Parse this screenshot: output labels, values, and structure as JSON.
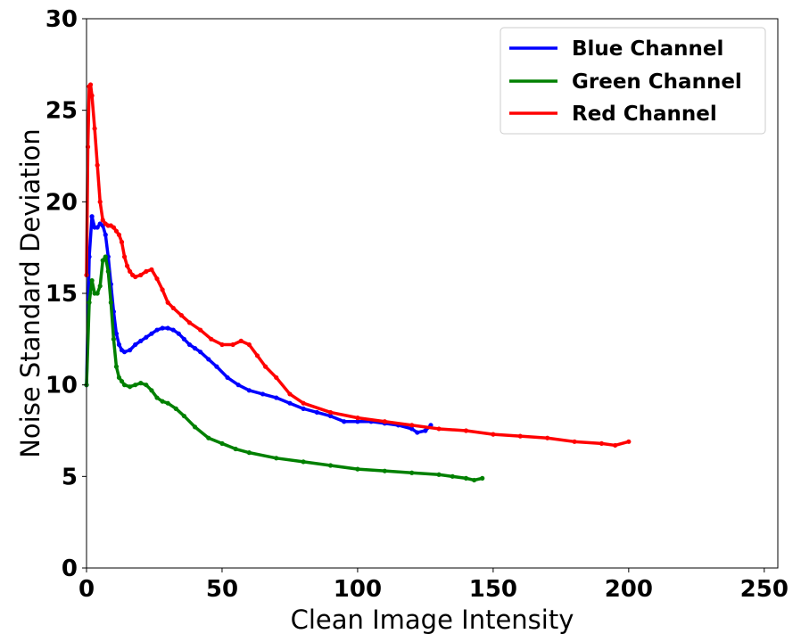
{
  "chart_data": {
    "type": "line",
    "title": "",
    "xlabel": "Clean Image Intensity",
    "ylabel": "Noise Standard Deviation",
    "xlim": [
      0,
      255
    ],
    "ylim": [
      0,
      30
    ],
    "xticks": [
      0,
      50,
      100,
      150,
      200,
      250
    ],
    "yticks": [
      0,
      5,
      10,
      15,
      20,
      25,
      30
    ],
    "grid": false,
    "legend_position": "top-right",
    "series": [
      {
        "name": "Blue Channel",
        "color": "#0000ff",
        "x": [
          0,
          1,
          2,
          3,
          4,
          5,
          6,
          7,
          8,
          9,
          10,
          11,
          12,
          13,
          14,
          16,
          18,
          20,
          22,
          24,
          26,
          28,
          30,
          32,
          34,
          36,
          38,
          40,
          42,
          45,
          48,
          52,
          56,
          60,
          65,
          70,
          75,
          80,
          85,
          90,
          95,
          100,
          105,
          110,
          115,
          120,
          122,
          125,
          127
        ],
        "y": [
          10.0,
          17.0,
          19.2,
          18.6,
          18.6,
          18.8,
          18.7,
          18.2,
          17.0,
          15.5,
          14.0,
          12.8,
          12.2,
          11.9,
          11.8,
          11.9,
          12.2,
          12.4,
          12.6,
          12.8,
          13.0,
          13.1,
          13.1,
          13.0,
          12.8,
          12.5,
          12.2,
          12.0,
          11.8,
          11.4,
          11.0,
          10.4,
          10.0,
          9.7,
          9.5,
          9.3,
          9.0,
          8.7,
          8.5,
          8.3,
          8.0,
          8.0,
          8.0,
          7.9,
          7.8,
          7.6,
          7.4,
          7.5,
          7.8
        ]
      },
      {
        "name": "Green Channel",
        "color": "#008000",
        "x": [
          0,
          1,
          2,
          3,
          4,
          5,
          6,
          7,
          8,
          9,
          10,
          11,
          12,
          13,
          14,
          16,
          18,
          20,
          22,
          24,
          26,
          28,
          30,
          33,
          36,
          40,
          45,
          50,
          55,
          60,
          70,
          80,
          90,
          100,
          110,
          120,
          130,
          135,
          140,
          143,
          146
        ],
        "y": [
          10.0,
          14.5,
          15.7,
          15.0,
          15.0,
          15.4,
          16.8,
          17.0,
          16.2,
          14.5,
          12.5,
          11.0,
          10.4,
          10.2,
          10.0,
          9.9,
          10.0,
          10.1,
          10.0,
          9.7,
          9.3,
          9.1,
          9.0,
          8.7,
          8.3,
          7.7,
          7.1,
          6.8,
          6.5,
          6.3,
          6.0,
          5.8,
          5.6,
          5.4,
          5.3,
          5.2,
          5.1,
          5.0,
          4.9,
          4.8,
          4.9
        ]
      },
      {
        "name": "Red Channel",
        "color": "#ff0000",
        "x": [
          0,
          0.5,
          1,
          1.5,
          2,
          3,
          4,
          5,
          6,
          7,
          8,
          9,
          10,
          11,
          12,
          13,
          14,
          15,
          16,
          17,
          18,
          20,
          22,
          24,
          26,
          28,
          30,
          32,
          35,
          38,
          42,
          46,
          50,
          54,
          57,
          60,
          63,
          66,
          70,
          75,
          80,
          90,
          100,
          110,
          120,
          130,
          140,
          150,
          160,
          170,
          180,
          190,
          195,
          200
        ],
        "y": [
          16.0,
          23.0,
          26.3,
          26.4,
          25.8,
          24.0,
          22.0,
          20.0,
          19.0,
          18.8,
          18.7,
          18.7,
          18.6,
          18.4,
          18.2,
          17.8,
          17.0,
          16.5,
          16.2,
          16.0,
          15.9,
          16.0,
          16.2,
          16.3,
          15.8,
          15.2,
          14.5,
          14.2,
          13.8,
          13.4,
          13.0,
          12.5,
          12.2,
          12.2,
          12.4,
          12.2,
          11.6,
          11.0,
          10.4,
          9.5,
          9.0,
          8.5,
          8.2,
          8.0,
          7.8,
          7.6,
          7.5,
          7.3,
          7.2,
          7.1,
          6.9,
          6.8,
          6.7,
          6.9
        ]
      }
    ]
  }
}
